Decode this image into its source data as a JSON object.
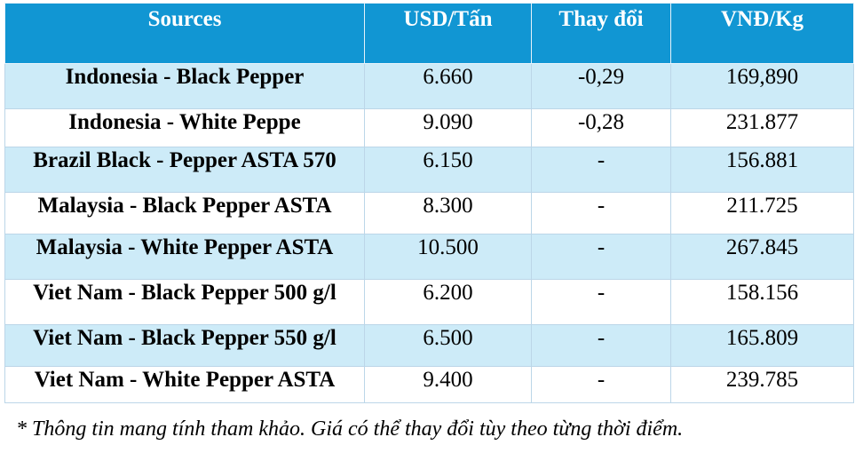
{
  "table": {
    "headers": [
      "Sources",
      "USD/Tấn",
      "Thay đổi",
      "VNĐ/Kg"
    ],
    "rows": [
      {
        "source": "Indonesia - Black Pepper",
        "usd_per_ton": "6.660",
        "change": "-0,29",
        "vnd_per_kg": "169,890"
      },
      {
        "source": "Indonesia - White Peppe",
        "usd_per_ton": "9.090",
        "change": "-0,28",
        "vnd_per_kg": "231.877"
      },
      {
        "source": "Brazil Black - Pepper ASTA 570",
        "usd_per_ton": "6.150",
        "change": "-",
        "vnd_per_kg": "156.881"
      },
      {
        "source": "Malaysia - Black Pepper ASTA",
        "usd_per_ton": "8.300",
        "change": "-",
        "vnd_per_kg": "211.725"
      },
      {
        "source": "Malaysia - White Pepper ASTA",
        "usd_per_ton": "10.500",
        "change": "-",
        "vnd_per_kg": "267.845"
      },
      {
        "source": "Viet Nam - Black Pepper 500 g/l",
        "usd_per_ton": "6.200",
        "change": "-",
        "vnd_per_kg": "158.156"
      },
      {
        "source": "Viet Nam - Black Pepper 550 g/l",
        "usd_per_ton": "6.500",
        "change": "-",
        "vnd_per_kg": "165.809"
      },
      {
        "source": "Viet Nam - White Pepper ASTA",
        "usd_per_ton": "9.400",
        "change": "-",
        "vnd_per_kg": "239.785"
      }
    ]
  },
  "footnote": "* Thông tin mang tính tham khảo. Giá có thể thay đổi tùy theo từng thời điểm.",
  "colors": {
    "header_bg": "#1196d3",
    "header_text": "#ffffff",
    "shaded_row_bg": "#cdebf8",
    "plain_row_bg": "#ffffff"
  }
}
